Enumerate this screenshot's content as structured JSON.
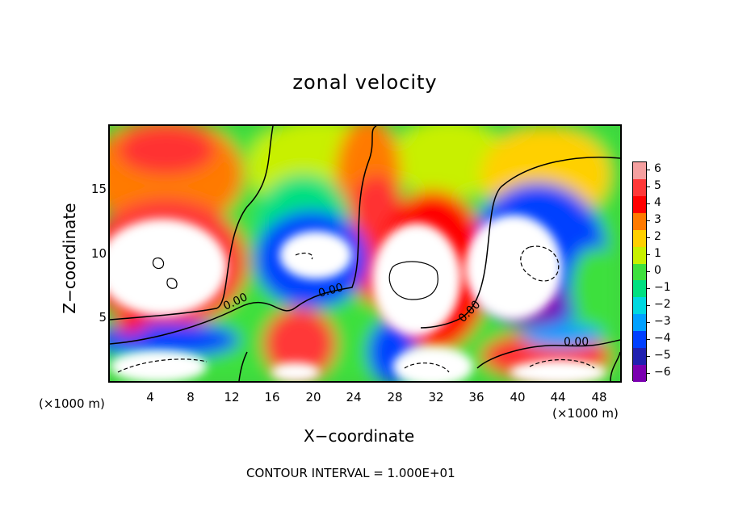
{
  "chart_data": {
    "type": "heatmap",
    "title": "zonal velocity",
    "xlabel": "X−coordinate",
    "ylabel": "Z−coordinate",
    "x_unit": "(×1000 m)",
    "y_unit": "(×1000 m)",
    "x_ticks": [
      4,
      8,
      12,
      16,
      20,
      24,
      28,
      32,
      36,
      40,
      44,
      48
    ],
    "y_ticks": [
      5,
      10,
      15
    ],
    "xlim": [
      0,
      50
    ],
    "ylim": [
      0,
      20
    ],
    "footer": "CONTOUR INTERVAL = 1.000E+01",
    "contour_labels": [
      "0.00",
      "0.00",
      "0.00",
      "0.00"
    ],
    "colorbar": {
      "ticks": [
        6,
        5,
        4,
        3,
        2,
        1,
        0,
        -1,
        -2,
        -3,
        -4,
        -5,
        -6
      ],
      "tick_labels": [
        "6",
        "5",
        "4",
        "3",
        "2",
        "1",
        "0",
        "−1",
        "−2",
        "−3",
        "−4",
        "−5",
        "−6"
      ],
      "colors": [
        "#f5a0a0",
        "#ff3838",
        "#ff0000",
        "#ff7a00",
        "#ffd000",
        "#c8f000",
        "#3ee03e",
        "#00e080",
        "#00d8e0",
        "#00a0ff",
        "#0040ff",
        "#2020b0",
        "#7a00b0"
      ]
    }
  }
}
